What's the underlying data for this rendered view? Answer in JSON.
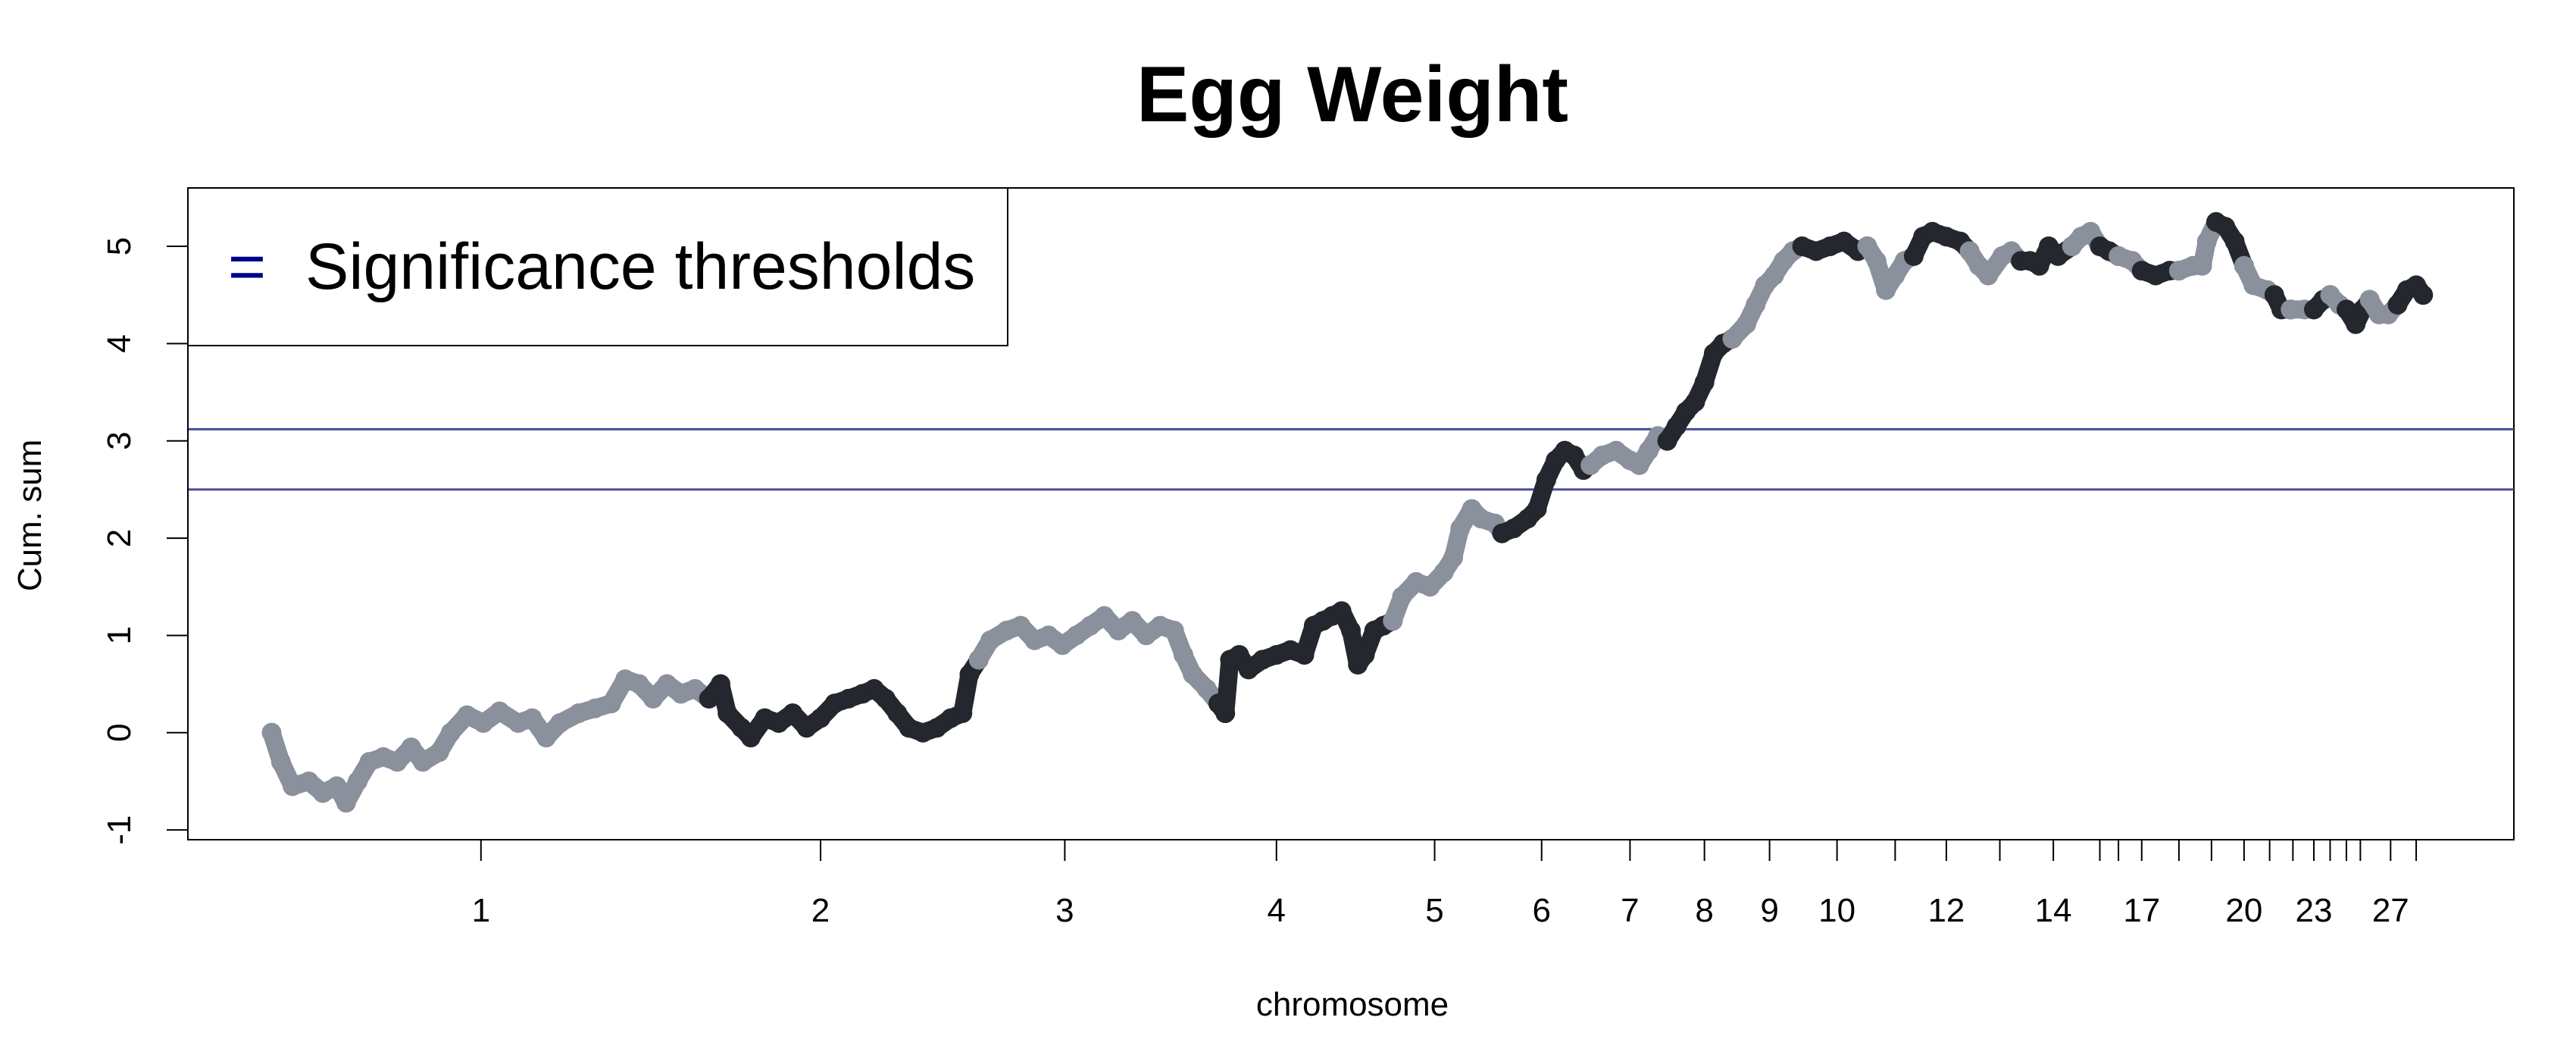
{
  "chart_data": {
    "type": "line",
    "title": "Egg Weight",
    "xlabel": "chromosome",
    "ylabel": "Cum. sum",
    "ylim": [
      -1.1,
      5.6
    ],
    "xlim": [
      0,
      1000
    ],
    "y_ticks": [
      -1,
      0,
      1,
      2,
      3,
      4,
      5
    ],
    "chromosome_ticks": [
      {
        "label": "1",
        "at": 126
      },
      {
        "label": "2",
        "at": 272
      },
      {
        "label": "3",
        "at": 377
      },
      {
        "label": "4",
        "at": 468
      },
      {
        "label": "5",
        "at": 536
      },
      {
        "label": "6",
        "at": 582
      },
      {
        "label": "7",
        "at": 620
      },
      {
        "label": "8",
        "at": 652
      },
      {
        "label": "9",
        "at": 680
      },
      {
        "label": "10",
        "at": 709
      },
      {
        "label": "",
        "at": 734
      },
      {
        "label": "12",
        "at": 756
      },
      {
        "label": "",
        "at": 779
      },
      {
        "label": "14",
        "at": 802
      },
      {
        "label": "",
        "at": 822
      },
      {
        "label": "",
        "at": 830
      },
      {
        "label": "17",
        "at": 840
      },
      {
        "label": "",
        "at": 856
      },
      {
        "label": "",
        "at": 870
      },
      {
        "label": "20",
        "at": 884
      },
      {
        "label": "",
        "at": 895
      },
      {
        "label": "",
        "at": 905
      },
      {
        "label": "23",
        "at": 914
      },
      {
        "label": "",
        "at": 921
      },
      {
        "label": "",
        "at": 928
      },
      {
        "label": "",
        "at": 934
      },
      {
        "label": "27",
        "at": 947
      },
      {
        "label": "",
        "at": 958
      }
    ],
    "thresholds": [
      2.5,
      3.12
    ],
    "threshold_color": "#4a4a9a",
    "series_colors": [
      "#8a909c",
      "#24272d"
    ],
    "legend": {
      "position": "top-left",
      "label": "Significance thresholds",
      "symbol": "="
    },
    "series": [
      {
        "chromosome": "1",
        "points": [
          [
            36,
            0.0
          ],
          [
            40,
            -0.3
          ],
          [
            45,
            -0.55
          ],
          [
            52,
            -0.5
          ],
          [
            58,
            -0.62
          ],
          [
            64,
            -0.55
          ],
          [
            68,
            -0.72
          ],
          [
            73,
            -0.5
          ],
          [
            78,
            -0.3
          ],
          [
            84,
            -0.25
          ],
          [
            90,
            -0.3
          ],
          [
            96,
            -0.15
          ],
          [
            101,
            -0.3
          ],
          [
            108,
            -0.2
          ],
          [
            113,
            0.0
          ],
          [
            120,
            0.18
          ],
          [
            127,
            0.1
          ],
          [
            134,
            0.22
          ],
          [
            142,
            0.1
          ],
          [
            148,
            0.15
          ],
          [
            154,
            -0.05
          ],
          [
            160,
            0.1
          ],
          [
            168,
            0.2
          ],
          [
            175,
            0.25
          ],
          [
            182,
            0.3
          ],
          [
            188,
            0.55
          ],
          [
            194,
            0.5
          ],
          [
            200,
            0.35
          ],
          [
            206,
            0.5
          ],
          [
            212,
            0.4
          ],
          [
            218,
            0.45
          ],
          [
            224,
            0.35
          ]
        ]
      },
      {
        "chromosome": "2",
        "points": [
          [
            224,
            0.35
          ],
          [
            229,
            0.5
          ],
          [
            232,
            0.2
          ],
          [
            238,
            0.05
          ],
          [
            242,
            -0.05
          ],
          [
            248,
            0.15
          ],
          [
            254,
            0.1
          ],
          [
            260,
            0.2
          ],
          [
            266,
            0.05
          ],
          [
            272,
            0.15
          ],
          [
            278,
            0.3
          ],
          [
            284,
            0.35
          ],
          [
            290,
            0.4
          ],
          [
            295,
            0.45
          ],
          [
            300,
            0.35
          ],
          [
            305,
            0.2
          ],
          [
            310,
            0.05
          ],
          [
            316,
            0.0
          ],
          [
            322,
            0.05
          ],
          [
            328,
            0.15
          ],
          [
            333,
            0.2
          ],
          [
            336,
            0.6
          ],
          [
            340,
            0.75
          ]
        ]
      },
      {
        "chromosome": "3",
        "points": [
          [
            340,
            0.75
          ],
          [
            345,
            0.95
          ],
          [
            352,
            1.05
          ],
          [
            358,
            1.1
          ],
          [
            364,
            0.95
          ],
          [
            370,
            1.0
          ],
          [
            376,
            0.9
          ],
          [
            382,
            1.0
          ],
          [
            388,
            1.1
          ],
          [
            394,
            1.2
          ],
          [
            400,
            1.05
          ],
          [
            406,
            1.15
          ],
          [
            412,
            1.0
          ],
          [
            418,
            1.1
          ],
          [
            424,
            1.05
          ],
          [
            428,
            0.8
          ],
          [
            432,
            0.6
          ],
          [
            438,
            0.45
          ],
          [
            443,
            0.3
          ]
        ]
      },
      {
        "chromosome": "4",
        "points": [
          [
            443,
            0.3
          ],
          [
            446,
            0.2
          ],
          [
            448,
            0.75
          ],
          [
            452,
            0.8
          ],
          [
            456,
            0.65
          ],
          [
            462,
            0.75
          ],
          [
            468,
            0.8
          ],
          [
            474,
            0.85
          ],
          [
            480,
            0.8
          ],
          [
            484,
            1.1
          ],
          [
            488,
            1.15
          ],
          [
            492,
            1.2
          ],
          [
            496,
            1.25
          ],
          [
            500,
            1.05
          ],
          [
            503,
            0.7
          ],
          [
            506,
            0.8
          ],
          [
            510,
            1.05
          ],
          [
            514,
            1.1
          ],
          [
            518,
            1.15
          ]
        ]
      },
      {
        "chromosome": "5",
        "points": [
          [
            518,
            1.15
          ],
          [
            522,
            1.4
          ],
          [
            528,
            1.55
          ],
          [
            534,
            1.5
          ],
          [
            540,
            1.65
          ],
          [
            544,
            1.8
          ],
          [
            547,
            2.1
          ],
          [
            552,
            2.3
          ],
          [
            556,
            2.2
          ],
          [
            562,
            2.15
          ],
          [
            565,
            2.05
          ]
        ]
      },
      {
        "chromosome": "6",
        "points": [
          [
            565,
            2.05
          ],
          [
            570,
            2.1
          ],
          [
            576,
            2.2
          ],
          [
            580,
            2.3
          ],
          [
            584,
            2.6
          ],
          [
            588,
            2.8
          ],
          [
            592,
            2.9
          ],
          [
            596,
            2.85
          ],
          [
            600,
            2.7
          ],
          [
            603,
            2.75
          ]
        ]
      },
      {
        "chromosome": "7",
        "points": [
          [
            603,
            2.75
          ],
          [
            608,
            2.85
          ],
          [
            614,
            2.9
          ],
          [
            620,
            2.8
          ],
          [
            624,
            2.75
          ],
          [
            628,
            2.9
          ],
          [
            632,
            3.05
          ],
          [
            636,
            3.0
          ]
        ]
      },
      {
        "chromosome": "8",
        "points": [
          [
            636,
            3.0
          ],
          [
            640,
            3.15
          ],
          [
            644,
            3.3
          ],
          [
            648,
            3.4
          ],
          [
            652,
            3.6
          ],
          [
            656,
            3.9
          ],
          [
            660,
            4.0
          ],
          [
            664,
            4.05
          ]
        ]
      },
      {
        "chromosome": "9",
        "points": [
          [
            664,
            4.05
          ],
          [
            670,
            4.2
          ],
          [
            674,
            4.4
          ],
          [
            678,
            4.6
          ],
          [
            682,
            4.7
          ],
          [
            686,
            4.85
          ],
          [
            690,
            4.95
          ],
          [
            694,
            5.0
          ]
        ]
      },
      {
        "chromosome": "10",
        "points": [
          [
            694,
            5.0
          ],
          [
            700,
            4.95
          ],
          [
            706,
            5.0
          ],
          [
            712,
            5.05
          ],
          [
            718,
            4.95
          ],
          [
            722,
            5.0
          ]
        ]
      },
      {
        "chromosome": "11",
        "points": [
          [
            722,
            5.0
          ],
          [
            726,
            4.85
          ],
          [
            730,
            4.55
          ],
          [
            734,
            4.7
          ],
          [
            738,
            4.85
          ],
          [
            742,
            4.9
          ]
        ]
      },
      {
        "chromosome": "12",
        "points": [
          [
            742,
            4.9
          ],
          [
            746,
            5.1
          ],
          [
            750,
            5.15
          ],
          [
            756,
            5.1
          ],
          [
            762,
            5.05
          ],
          [
            766,
            4.95
          ]
        ]
      },
      {
        "chromosome": "13",
        "points": [
          [
            766,
            4.95
          ],
          [
            770,
            4.8
          ],
          [
            774,
            4.7
          ],
          [
            780,
            4.9
          ],
          [
            784,
            4.95
          ],
          [
            788,
            4.85
          ]
        ]
      },
      {
        "chromosome": "14",
        "points": [
          [
            788,
            4.85
          ],
          [
            792,
            4.85
          ],
          [
            796,
            4.8
          ],
          [
            800,
            5.0
          ],
          [
            804,
            4.9
          ],
          [
            810,
            5.0
          ]
        ]
      },
      {
        "chromosome": "15",
        "points": [
          [
            810,
            5.0
          ],
          [
            814,
            5.1
          ],
          [
            818,
            5.15
          ],
          [
            822,
            5.0
          ]
        ]
      },
      {
        "chromosome": "16",
        "points": [
          [
            822,
            5.0
          ],
          [
            826,
            4.95
          ],
          [
            830,
            4.9
          ]
        ]
      },
      {
        "chromosome": "17",
        "points": [
          [
            830,
            4.9
          ],
          [
            836,
            4.85
          ],
          [
            840,
            4.75
          ]
        ]
      },
      {
        "chromosome": "18",
        "points": [
          [
            840,
            4.75
          ],
          [
            846,
            4.7
          ],
          [
            852,
            4.75
          ],
          [
            856,
            4.75
          ]
        ]
      },
      {
        "chromosome": "19",
        "points": [
          [
            856,
            4.75
          ],
          [
            862,
            4.8
          ],
          [
            866,
            4.8
          ],
          [
            868,
            5.05
          ],
          [
            872,
            5.25
          ]
        ]
      },
      {
        "chromosome": "20",
        "points": [
          [
            872,
            5.25
          ],
          [
            876,
            5.2
          ],
          [
            880,
            5.05
          ],
          [
            884,
            4.8
          ]
        ]
      },
      {
        "chromosome": "21",
        "points": [
          [
            884,
            4.8
          ],
          [
            888,
            4.6
          ],
          [
            894,
            4.55
          ],
          [
            897,
            4.5
          ]
        ]
      },
      {
        "chromosome": "22",
        "points": [
          [
            897,
            4.5
          ],
          [
            900,
            4.35
          ],
          [
            904,
            4.35
          ]
        ]
      },
      {
        "chromosome": "23",
        "points": [
          [
            904,
            4.35
          ],
          [
            910,
            4.35
          ],
          [
            914,
            4.35
          ]
        ]
      },
      {
        "chromosome": "24",
        "points": [
          [
            914,
            4.35
          ],
          [
            918,
            4.45
          ],
          [
            921,
            4.5
          ]
        ]
      },
      {
        "chromosome": "25",
        "points": [
          [
            921,
            4.5
          ],
          [
            925,
            4.4
          ],
          [
            928,
            4.35
          ]
        ]
      },
      {
        "chromosome": "26",
        "points": [
          [
            928,
            4.35
          ],
          [
            932,
            4.2
          ],
          [
            935,
            4.35
          ],
          [
            938,
            4.45
          ]
        ]
      },
      {
        "chromosome": "27",
        "points": [
          [
            938,
            4.45
          ],
          [
            942,
            4.3
          ],
          [
            946,
            4.3
          ],
          [
            950,
            4.4
          ]
        ]
      },
      {
        "chromosome": "28",
        "points": [
          [
            950,
            4.4
          ],
          [
            954,
            4.55
          ],
          [
            958,
            4.6
          ],
          [
            961,
            4.5
          ]
        ]
      }
    ]
  }
}
